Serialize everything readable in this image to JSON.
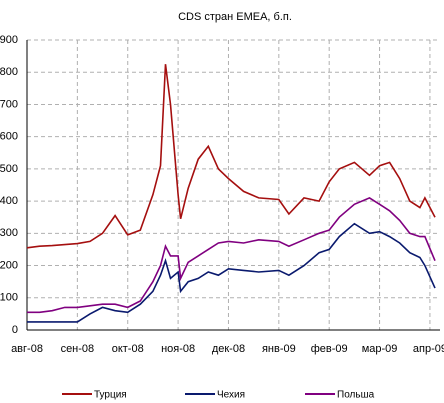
{
  "chart_data": {
    "type": "line",
    "title": "CDS стран EMEA, б.п.",
    "x": [
      0,
      0.25,
      0.5,
      0.75,
      1,
      1.25,
      1.5,
      1.75,
      2,
      2.25,
      2.5,
      2.65,
      2.75,
      2.85,
      3,
      3.05,
      3.2,
      3.4,
      3.6,
      3.8,
      4,
      4.3,
      4.6,
      5,
      5.2,
      5.5,
      5.8,
      6,
      6.2,
      6.5,
      6.8,
      7,
      7.2,
      7.4,
      7.6,
      7.8,
      7.9,
      8.1
    ],
    "series": [
      {
        "name": "Турция",
        "color": "#a50f0f",
        "values": [
          255,
          260,
          262,
          265,
          268,
          275,
          300,
          355,
          295,
          310,
          420,
          510,
          825,
          700,
          420,
          345,
          440,
          530,
          570,
          500,
          470,
          430,
          410,
          405,
          360,
          410,
          400,
          460,
          500,
          520,
          480,
          510,
          520,
          470,
          400,
          380,
          410,
          350
        ]
      },
      {
        "name": "Чехия",
        "color": "#0a1a6e",
        "values": [
          25,
          25,
          25,
          25,
          25,
          50,
          70,
          60,
          55,
          80,
          120,
          170,
          215,
          160,
          180,
          120,
          150,
          160,
          180,
          170,
          190,
          185,
          180,
          185,
          170,
          200,
          240,
          250,
          290,
          330,
          300,
          305,
          290,
          270,
          240,
          225,
          200,
          130
        ]
      },
      {
        "name": "Польша",
        "color": "#800080",
        "values": [
          55,
          55,
          60,
          70,
          70,
          75,
          80,
          80,
          70,
          90,
          150,
          200,
          260,
          230,
          230,
          160,
          210,
          230,
          250,
          270,
          275,
          270,
          280,
          275,
          260,
          280,
          300,
          310,
          350,
          390,
          410,
          390,
          370,
          340,
          300,
          290,
          290,
          215
        ]
      }
    ],
    "xlim": [
      0,
      8.2
    ],
    "xticks": [
      {
        "value": 0,
        "label": "авг-08"
      },
      {
        "value": 1,
        "label": "сен-08"
      },
      {
        "value": 2,
        "label": "окт-08"
      },
      {
        "value": 3,
        "label": "ноя-08"
      },
      {
        "value": 4,
        "label": "дек-08"
      },
      {
        "value": 5,
        "label": "янв-09"
      },
      {
        "value": 6,
        "label": "фев-09"
      },
      {
        "value": 7,
        "label": "мар-09"
      },
      {
        "value": 8,
        "label": "апр-09"
      }
    ],
    "ylim": [
      0,
      900
    ],
    "yticks": [
      0,
      100,
      200,
      300,
      400,
      500,
      600,
      700,
      800,
      900
    ],
    "grid": true,
    "legend": "bottom"
  }
}
